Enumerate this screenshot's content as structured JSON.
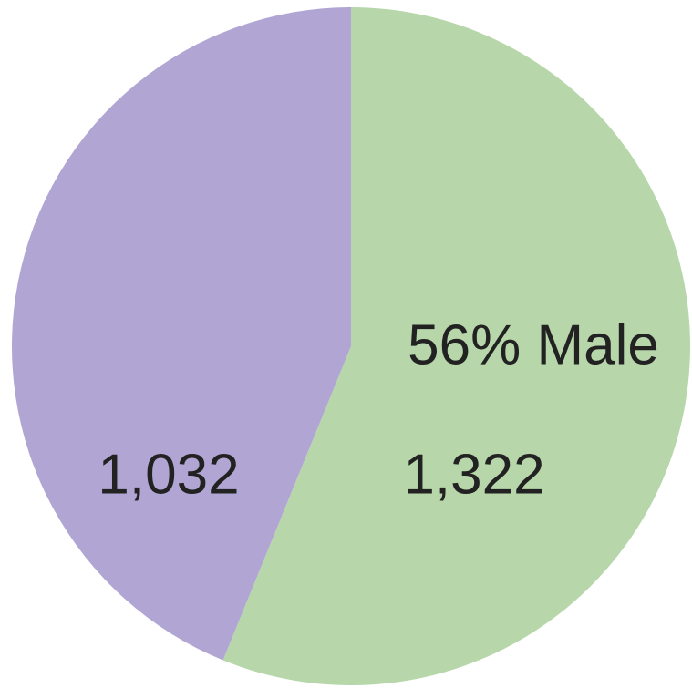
{
  "chart_data": {
    "type": "pie",
    "annotation": "56% Male",
    "values": [
      1322,
      1032
    ],
    "value_labels": [
      "1,322",
      "1,032"
    ],
    "colors": [
      "#b7d7aa",
      "#b1a6d3"
    ]
  }
}
